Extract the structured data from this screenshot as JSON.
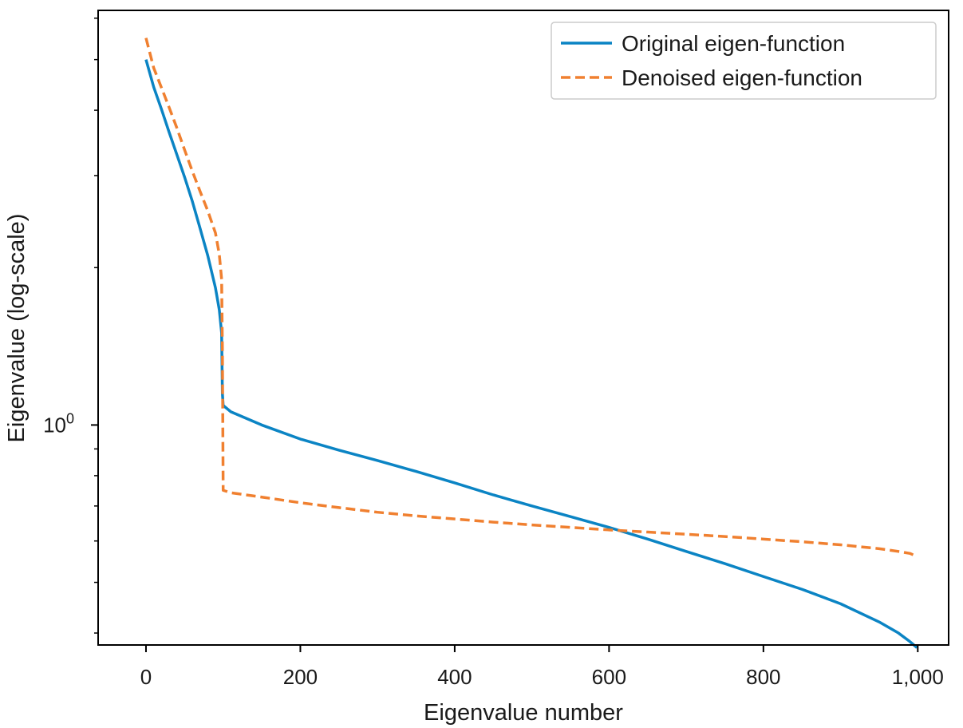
{
  "chart_data": {
    "type": "line",
    "title": "",
    "xlabel": "Eigenvalue number",
    "ylabel": "Eigenvalue (log-scale)",
    "xscale": "linear",
    "yscale": "log",
    "xlim": [
      -62,
      1040
    ],
    "ylim": [
      0.3795,
      6.21
    ],
    "grid": false,
    "legend_position": "top-right",
    "x_ticks": [
      {
        "value": 0,
        "label": "0"
      },
      {
        "value": 200,
        "label": "200"
      },
      {
        "value": 400,
        "label": "400"
      },
      {
        "value": 600,
        "label": "600"
      },
      {
        "value": 800,
        "label": "800"
      },
      {
        "value": 1000,
        "label": "1,000"
      }
    ],
    "y_major_ticks": [
      {
        "value": 1,
        "base": "10",
        "exponent": "0"
      }
    ],
    "y_minor_ticks": [
      0.4,
      0.5,
      0.6,
      0.7,
      0.8,
      0.9,
      2,
      3,
      4,
      5,
      6
    ],
    "series": [
      {
        "name": "Original eigen-function",
        "color": "#0b84c4",
        "dash": "solid",
        "x": [
          0,
          10,
          20,
          30,
          40,
          50,
          60,
          70,
          80,
          90,
          95,
          98,
          99,
          100,
          110,
          150,
          200,
          250,
          300,
          350,
          400,
          450,
          500,
          550,
          600,
          650,
          700,
          750,
          800,
          850,
          900,
          950,
          975,
          990,
          999
        ],
        "y": [
          5.0,
          4.43,
          4.02,
          3.63,
          3.29,
          2.98,
          2.68,
          2.38,
          2.11,
          1.83,
          1.66,
          1.5,
          1.15,
          1.09,
          1.06,
          1.0,
          0.94,
          0.895,
          0.855,
          0.815,
          0.775,
          0.735,
          0.7,
          0.668,
          0.637,
          0.605,
          0.573,
          0.543,
          0.513,
          0.485,
          0.455,
          0.42,
          0.4,
          0.385,
          0.375
        ]
      },
      {
        "name": "Denoised eigen-function",
        "color": "#f08030",
        "dash": "dashed",
        "x": [
          0,
          10,
          20,
          30,
          40,
          50,
          60,
          70,
          80,
          90,
          95,
          98,
          99,
          100,
          110,
          150,
          200,
          250,
          300,
          350,
          400,
          450,
          500,
          550,
          600,
          650,
          700,
          750,
          800,
          850,
          900,
          950,
          975,
          990,
          999
        ],
        "y": [
          5.5,
          4.82,
          4.42,
          4.05,
          3.7,
          3.36,
          3.06,
          2.8,
          2.57,
          2.33,
          2.12,
          1.9,
          1.4,
          0.75,
          0.742,
          0.728,
          0.71,
          0.695,
          0.681,
          0.67,
          0.661,
          0.652,
          0.644,
          0.637,
          0.63,
          0.624,
          0.618,
          0.612,
          0.605,
          0.598,
          0.59,
          0.58,
          0.573,
          0.568,
          0.56
        ]
      }
    ]
  }
}
